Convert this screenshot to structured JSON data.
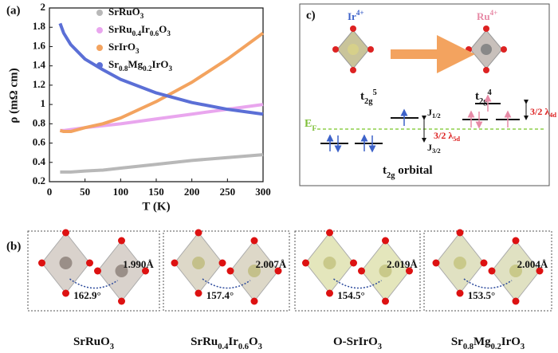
{
  "chart_data": {
    "type": "line",
    "panel": "(a)",
    "xlabel": "T (K)",
    "ylabel": "ρ (mΩ cm)",
    "x": [
      15,
      20,
      30,
      50,
      75,
      100,
      150,
      200,
      250,
      300
    ],
    "series": [
      {
        "name": "SrRuO3",
        "color": "#b8b8b8",
        "values": [
          0.3,
          0.3,
          0.3,
          0.31,
          0.32,
          0.34,
          0.38,
          0.42,
          0.45,
          0.48
        ]
      },
      {
        "name": "SrRu0.4Ir0.6O3",
        "color": "#e9a6ee",
        "values": [
          0.73,
          0.73,
          0.74,
          0.76,
          0.78,
          0.8,
          0.85,
          0.9,
          0.95,
          1.0
        ]
      },
      {
        "name": "SrIrO3",
        "color": "#f3a35f",
        "values": [
          0.73,
          0.72,
          0.72,
          0.76,
          0.8,
          0.86,
          1.03,
          1.23,
          1.47,
          1.74
        ]
      },
      {
        "name": "Sr0.8Mg0.2IrO3",
        "color": "#5b6fd6",
        "values": [
          1.84,
          1.74,
          1.62,
          1.47,
          1.36,
          1.26,
          1.12,
          1.02,
          0.95,
          0.9
        ]
      }
    ],
    "xlim": [
      0,
      300
    ],
    "xticks": [
      0,
      50,
      100,
      150,
      200,
      250,
      300
    ],
    "ylim": [
      0.2,
      2.0
    ],
    "yticks": [
      0.2,
      0.4,
      0.6,
      0.8,
      1.0,
      1.2,
      1.4,
      1.6,
      1.8,
      2.0
    ]
  },
  "panel_b": {
    "label": "(b)",
    "structures": [
      {
        "name": "SrRuO3",
        "angle": "162.9°",
        "bond": "1.990Å"
      },
      {
        "name": "SrRu0.4Ir0.6O3",
        "angle": "157.4°",
        "bond": "2.007Å"
      },
      {
        "name": "O-SrIrO3",
        "angle": "154.5°",
        "bond": "2.019Å"
      },
      {
        "name": "Sr0.8Mg0.2IrO3",
        "angle": "153.5°",
        "bond": "2.004Å"
      }
    ]
  },
  "panel_c": {
    "label": "c)",
    "ion_left": "Ir4+",
    "ion_right": "Ru4+",
    "config_left": "t2g5",
    "config_right": "t2g4",
    "fermi": "EF",
    "j_half": "J1/2",
    "j_three_half": "J3/2",
    "soc_5d": "3/2 λ5d",
    "soc_4d": "3/2 λ4d",
    "orbital": "t2g orbital"
  }
}
